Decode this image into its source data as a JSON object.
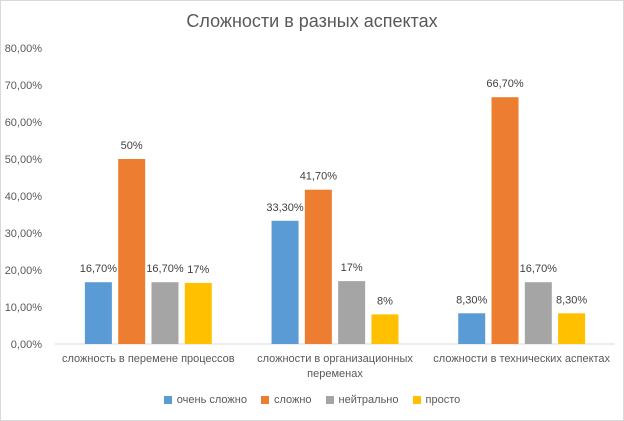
{
  "chart_data": {
    "type": "bar",
    "title": "Сложности в разных аспектах",
    "categories": [
      "сложность в перемене процессов",
      "сложности в организационных переменах",
      "сложности в технических аспектах"
    ],
    "category_label_lines": [
      [
        "сложность в перемене процессов"
      ],
      [
        "сложности в организационных",
        "переменах"
      ],
      [
        "сложности в технических аспектах"
      ]
    ],
    "series": [
      {
        "name": "очень сложно",
        "color": "#5B9BD5",
        "values": [
          16.7,
          33.3,
          8.3
        ],
        "labels": [
          "16,70%",
          "33,30%",
          "8,30%"
        ]
      },
      {
        "name": "сложно",
        "color": "#ED7D31",
        "values": [
          50,
          41.7,
          66.7
        ],
        "labels": [
          "50%",
          "41,70%",
          "66,70%"
        ]
      },
      {
        "name": "нейтрально",
        "color": "#A5A5A5",
        "values": [
          16.7,
          17,
          16.7
        ],
        "labels": [
          "16,70%",
          "17%",
          "16,70%"
        ]
      },
      {
        "name": "просто",
        "color": "#FFC000",
        "values": [
          16.5,
          8,
          8.3
        ],
        "labels": [
          "17%",
          "8%",
          "8,30%"
        ]
      }
    ],
    "ylim": [
      0,
      80
    ],
    "yticks": [
      "0,00%",
      "10,00%",
      "20,00%",
      "30,00%",
      "40,00%",
      "50,00%",
      "60,00%",
      "70,00%",
      "80,00%"
    ],
    "xlabel": "",
    "ylabel": "",
    "grid": false,
    "legend": "bottom"
  }
}
